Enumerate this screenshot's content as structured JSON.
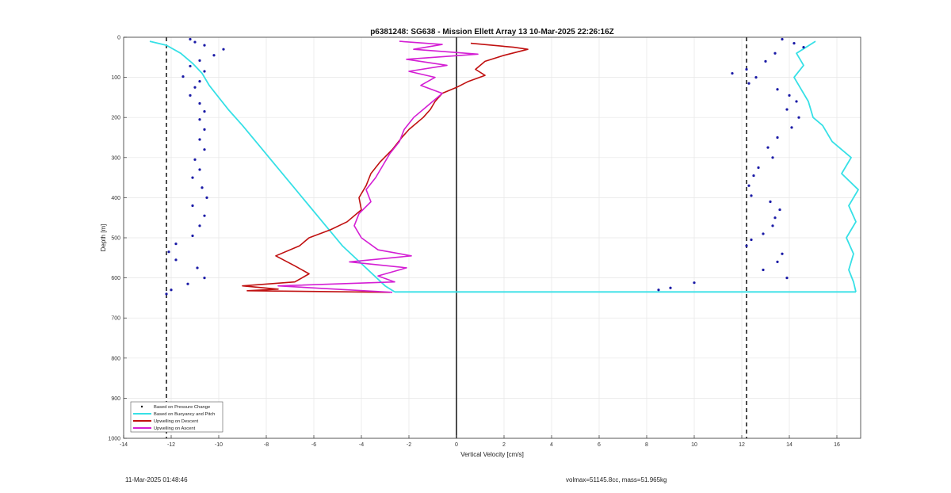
{
  "chart_data": {
    "type": "line",
    "title": "p6381248: SG638 - Mission Ellett Array 13 10-Mar-2025 22:26:16Z",
    "xlabel": "Vertical Velocity [cm/s]",
    "ylabel": "Depth [m]",
    "xlim": [
      -14,
      17
    ],
    "ylim": [
      0,
      1000
    ],
    "y_reversed": true,
    "grid": true,
    "x_ticks": [
      -14,
      -12,
      -10,
      -8,
      -6,
      -4,
      -2,
      0,
      2,
      4,
      6,
      8,
      10,
      12,
      14,
      16
    ],
    "y_ticks": [
      0,
      100,
      200,
      300,
      400,
      500,
      600,
      700,
      800,
      900,
      1000
    ],
    "reference_lines": [
      {
        "x": -12.2,
        "style": "dashed",
        "color": "#000000"
      },
      {
        "x": 12.2,
        "style": "dashed",
        "color": "#000000"
      },
      {
        "x": 0,
        "style": "solid",
        "color": "#000000"
      }
    ],
    "legend_position": "bottom-left",
    "series": [
      {
        "name": "Based on Pressure Change",
        "style": "dots",
        "color": "#1a1aa6",
        "points_descent": [
          [
            -11.2,
            5
          ],
          [
            -11.0,
            12
          ],
          [
            -10.6,
            20
          ],
          [
            -9.8,
            30
          ],
          [
            -10.2,
            45
          ],
          [
            -10.8,
            58
          ],
          [
            -11.2,
            72
          ],
          [
            -10.6,
            85
          ],
          [
            -11.5,
            98
          ],
          [
            -10.8,
            110
          ],
          [
            -11.0,
            125
          ],
          [
            -11.2,
            145
          ],
          [
            -10.8,
            165
          ],
          [
            -10.6,
            185
          ],
          [
            -10.8,
            205
          ],
          [
            -10.6,
            230
          ],
          [
            -10.8,
            255
          ],
          [
            -10.6,
            280
          ],
          [
            -11.0,
            305
          ],
          [
            -10.8,
            330
          ],
          [
            -11.1,
            350
          ],
          [
            -10.7,
            375
          ],
          [
            -10.5,
            400
          ],
          [
            -11.1,
            420
          ],
          [
            -10.6,
            445
          ],
          [
            -10.8,
            470
          ],
          [
            -11.1,
            495
          ],
          [
            -11.8,
            515
          ],
          [
            -12.1,
            535
          ],
          [
            -11.8,
            555
          ],
          [
            -10.9,
            575
          ],
          [
            -10.6,
            600
          ],
          [
            -11.3,
            615
          ],
          [
            -12.0,
            630
          ],
          [
            -12.2,
            640
          ]
        ],
        "points_ascent": [
          [
            13.7,
            5
          ],
          [
            14.2,
            15
          ],
          [
            14.6,
            25
          ],
          [
            13.4,
            40
          ],
          [
            13.0,
            60
          ],
          [
            12.2,
            80
          ],
          [
            11.6,
            90
          ],
          [
            12.6,
            100
          ],
          [
            12.3,
            115
          ],
          [
            13.5,
            130
          ],
          [
            14.0,
            145
          ],
          [
            14.3,
            160
          ],
          [
            13.9,
            180
          ],
          [
            14.4,
            200
          ],
          [
            14.1,
            225
          ],
          [
            13.5,
            250
          ],
          [
            13.1,
            275
          ],
          [
            13.3,
            300
          ],
          [
            12.7,
            325
          ],
          [
            12.5,
            345
          ],
          [
            12.3,
            370
          ],
          [
            12.4,
            395
          ],
          [
            13.2,
            410
          ],
          [
            13.6,
            430
          ],
          [
            13.4,
            450
          ],
          [
            13.3,
            470
          ],
          [
            12.9,
            490
          ],
          [
            12.4,
            505
          ],
          [
            12.2,
            520
          ],
          [
            13.7,
            540
          ],
          [
            13.5,
            560
          ],
          [
            12.9,
            580
          ],
          [
            13.9,
            600
          ],
          [
            10.0,
            612
          ],
          [
            9.0,
            625
          ],
          [
            8.5,
            630
          ]
        ]
      },
      {
        "name": "Based on Buoyancy and Pitch",
        "style": "line",
        "color": "#36e0e6",
        "points_descent": [
          [
            -12.9,
            10
          ],
          [
            -12.2,
            20
          ],
          [
            -11.6,
            40
          ],
          [
            -11.1,
            65
          ],
          [
            -10.7,
            90
          ],
          [
            -10.4,
            120
          ],
          [
            -10.0,
            150
          ],
          [
            -9.6,
            180
          ],
          [
            -9.0,
            220
          ],
          [
            -8.3,
            270
          ],
          [
            -7.6,
            320
          ],
          [
            -6.9,
            370
          ],
          [
            -6.2,
            420
          ],
          [
            -5.5,
            470
          ],
          [
            -4.8,
            520
          ],
          [
            -3.9,
            570
          ],
          [
            -3.0,
            620
          ],
          [
            -2.6,
            635
          ]
        ],
        "points_ascent": [
          [
            16.8,
            635
          ],
          [
            16.7,
            610
          ],
          [
            16.5,
            580
          ],
          [
            16.7,
            540
          ],
          [
            16.4,
            500
          ],
          [
            16.8,
            460
          ],
          [
            16.5,
            420
          ],
          [
            16.9,
            380
          ],
          [
            16.2,
            340
          ],
          [
            16.6,
            300
          ],
          [
            15.8,
            260
          ],
          [
            15.4,
            220
          ],
          [
            15.0,
            200
          ],
          [
            14.8,
            160
          ],
          [
            14.5,
            130
          ],
          [
            14.2,
            100
          ],
          [
            14.6,
            70
          ],
          [
            14.3,
            40
          ],
          [
            15.1,
            10
          ]
        ]
      },
      {
        "name": "Upwelling on Descent",
        "style": "line",
        "color": "#c01010",
        "points": [
          [
            0.6,
            15
          ],
          [
            1.5,
            20
          ],
          [
            2.4,
            25
          ],
          [
            3.0,
            30
          ],
          [
            2.0,
            45
          ],
          [
            1.2,
            60
          ],
          [
            0.8,
            80
          ],
          [
            1.2,
            95
          ],
          [
            0.5,
            110
          ],
          [
            0.0,
            125
          ],
          [
            -0.6,
            140
          ],
          [
            -0.9,
            160
          ],
          [
            -1.1,
            180
          ],
          [
            -1.4,
            200
          ],
          [
            -2.0,
            230
          ],
          [
            -2.3,
            250
          ],
          [
            -2.7,
            280
          ],
          [
            -3.2,
            310
          ],
          [
            -3.6,
            340
          ],
          [
            -3.8,
            370
          ],
          [
            -4.1,
            400
          ],
          [
            -4.0,
            430
          ],
          [
            -4.6,
            460
          ],
          [
            -5.3,
            480
          ],
          [
            -6.2,
            500
          ],
          [
            -6.6,
            520
          ],
          [
            -7.6,
            545
          ],
          [
            -6.8,
            570
          ],
          [
            -6.2,
            590
          ],
          [
            -6.8,
            610
          ],
          [
            -9.0,
            620
          ],
          [
            -7.5,
            628
          ],
          [
            -8.8,
            632
          ],
          [
            -2.8,
            636
          ]
        ]
      },
      {
        "name": "Upwelling on Ascent",
        "style": "line",
        "color": "#d41fd4",
        "points": [
          [
            -2.4,
            10
          ],
          [
            -0.6,
            18
          ],
          [
            -1.8,
            30
          ],
          [
            0.9,
            42
          ],
          [
            -2.1,
            55
          ],
          [
            -0.4,
            70
          ],
          [
            -2.0,
            85
          ],
          [
            -0.9,
            100
          ],
          [
            -1.5,
            120
          ],
          [
            -0.6,
            140
          ],
          [
            -1.0,
            160
          ],
          [
            -1.4,
            180
          ],
          [
            -1.8,
            200
          ],
          [
            -2.2,
            230
          ],
          [
            -2.4,
            260
          ],
          [
            -2.8,
            290
          ],
          [
            -3.1,
            320
          ],
          [
            -3.4,
            350
          ],
          [
            -3.8,
            380
          ],
          [
            -3.6,
            410
          ],
          [
            -4.1,
            440
          ],
          [
            -4.3,
            470
          ],
          [
            -4.0,
            500
          ],
          [
            -3.3,
            530
          ],
          [
            -1.9,
            545
          ],
          [
            -4.5,
            560
          ],
          [
            -2.1,
            575
          ],
          [
            -3.3,
            595
          ],
          [
            -2.6,
            610
          ],
          [
            -7.5,
            620
          ],
          [
            -2.7,
            636
          ]
        ]
      }
    ]
  },
  "footer": {
    "timestamp": "11-Mar-2025 01:48:46",
    "volmax": "volmax=51145.8cc, mass=51.965kg"
  }
}
